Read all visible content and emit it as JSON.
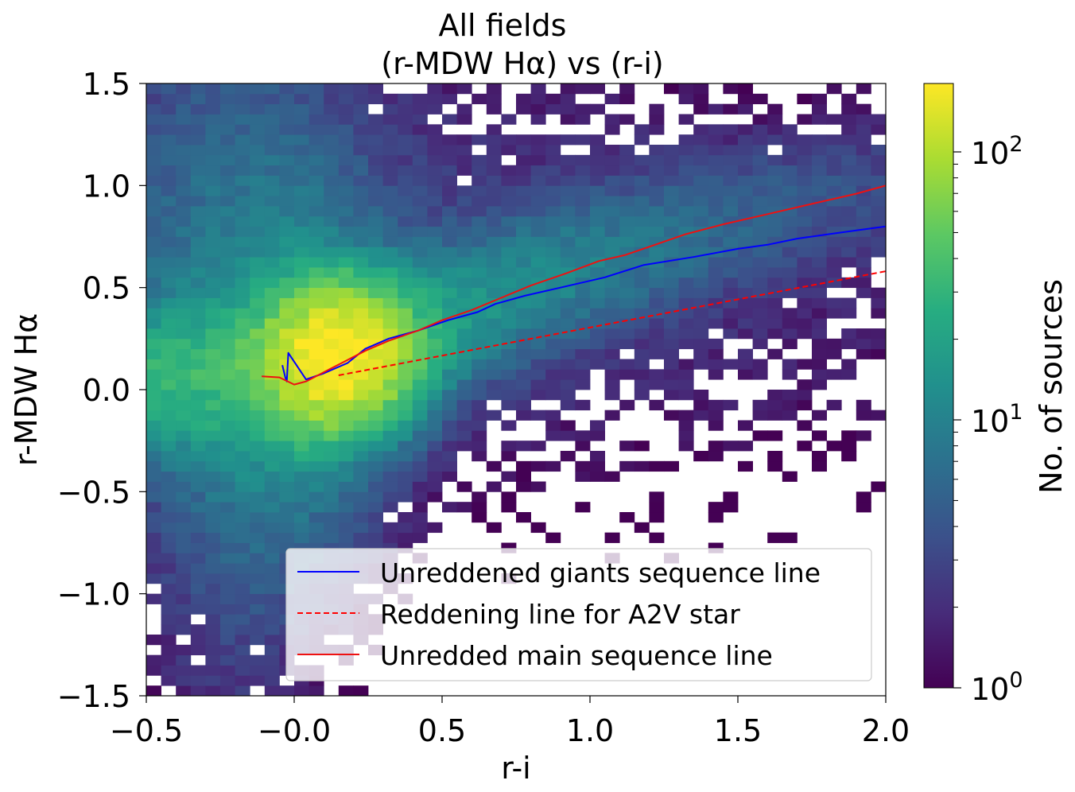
{
  "chart_data": {
    "type": "heatmap",
    "title": "All fields",
    "subtitle": "(r-MDW Hα) vs (r-i)",
    "xlabel": "r-i",
    "ylabel": "r-MDW Hα",
    "xlim": [
      -0.5,
      2.0
    ],
    "ylim": [
      -1.5,
      1.5
    ],
    "xticks": [
      -0.5,
      0.0,
      0.5,
      1.0,
      1.5,
      2.0
    ],
    "xtick_labels": [
      "−0.5",
      "−0.0",
      "0.5",
      "1.0",
      "1.5",
      "2.0"
    ],
    "yticks": [
      -1.5,
      -1.0,
      -0.5,
      0.0,
      0.5,
      1.0,
      1.5
    ],
    "ytick_labels": [
      "−1.5",
      "−1.0",
      "−0.5",
      "0.0",
      "0.5",
      "1.0",
      "1.5"
    ],
    "histogram": {
      "bins_x": 50,
      "bins_y": 60,
      "colormap": "viridis",
      "norm": "log",
      "peak_count": 180,
      "peak_location": [
        0.15,
        0.15
      ]
    },
    "colorbar": {
      "label": "No. of sources",
      "range": [
        1,
        180
      ],
      "ticks": [
        {
          "base": "10",
          "exp": "0",
          "value": 1
        },
        {
          "base": "10",
          "exp": "1",
          "value": 10
        },
        {
          "base": "10",
          "exp": "2",
          "value": 100
        }
      ]
    },
    "series": [
      {
        "name": "Unreddened giants sequence line",
        "color": "#0000ff",
        "style": "solid",
        "x": [
          -0.04,
          -0.03,
          -0.025,
          -0.02,
          0.04,
          0.1,
          0.18,
          0.24,
          0.32,
          0.42,
          0.52,
          0.62,
          0.68,
          0.78,
          0.9,
          1.05,
          1.18,
          1.35,
          1.5,
          1.6,
          1.7,
          1.8,
          1.9,
          2.0
        ],
        "y": [
          0.12,
          0.06,
          0.04,
          0.18,
          0.05,
          0.08,
          0.13,
          0.2,
          0.25,
          0.29,
          0.34,
          0.38,
          0.42,
          0.46,
          0.5,
          0.55,
          0.61,
          0.65,
          0.69,
          0.71,
          0.74,
          0.76,
          0.78,
          0.8
        ]
      },
      {
        "name": "Reddening line for A2V star",
        "color": "#ff0000",
        "style": "dashed",
        "x": [
          0.15,
          2.0
        ],
        "y": [
          0.07,
          0.58
        ]
      },
      {
        "name": "Unredded main sequence line",
        "color": "#ee1111",
        "style": "solid",
        "x": [
          -0.11,
          -0.05,
          0.0,
          0.04,
          0.08,
          0.12,
          0.16,
          0.24,
          0.32,
          0.42,
          0.5,
          0.6,
          0.7,
          0.8,
          0.92,
          1.03,
          1.12,
          1.22,
          1.32,
          1.45,
          1.6,
          1.75,
          1.9,
          2.0
        ],
        "y": [
          0.065,
          0.06,
          0.025,
          0.04,
          0.07,
          0.1,
          0.13,
          0.19,
          0.24,
          0.29,
          0.34,
          0.39,
          0.45,
          0.51,
          0.57,
          0.63,
          0.66,
          0.71,
          0.76,
          0.81,
          0.86,
          0.91,
          0.96,
          1.0
        ]
      }
    ],
    "legend": {
      "location": "lower right",
      "entries": [
        {
          "label": "Unreddened giants sequence line",
          "color": "#0000ff",
          "style": "solid"
        },
        {
          "label": "Reddening line for A2V star",
          "color": "#ff0000",
          "style": "dashed"
        },
        {
          "label": "Unredded main sequence line",
          "color": "#ee1111",
          "style": "solid"
        }
      ]
    }
  }
}
